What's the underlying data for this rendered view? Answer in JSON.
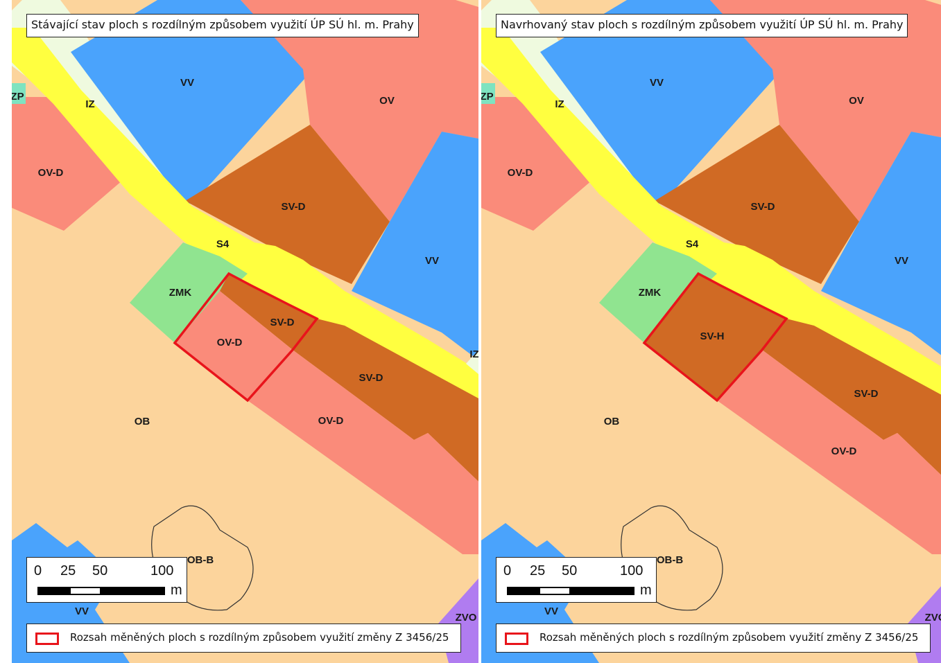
{
  "left_panel": {
    "title": "Stávající stav ploch s rozdílným způsobem využití ÚP SÚ hl. m. Prahy",
    "labels": {
      "vv_top": "VV",
      "iz": "IZ",
      "zp": "ZP",
      "ov": "OV",
      "ov_d_left": "OV-D",
      "sv_d_upper": "SV-D",
      "s4": "S4",
      "vv_right": "VV",
      "zmk": "ZMK",
      "sv_d_small": "SV-D",
      "ov_d_center": "OV-D",
      "sv_d_lower": "SV-D",
      "iz_edge": "IZ",
      "ob": "OB",
      "ov_d_lower": "OV-D",
      "ob_b": "OB-B",
      "vv_bottom": "VV",
      "zvo": "ZVO"
    },
    "scale": {
      "t0": "0",
      "t25": "25",
      "t50": "50",
      "t100": "100",
      "unit": "m"
    },
    "legend": {
      "text": "Rozsah měněných ploch s rozdílným způsobem využití změny Z 3456/25"
    }
  },
  "right_panel": {
    "title": "Navrhovaný stav ploch s rozdílným způsobem využití ÚP SÚ hl. m. Prahy",
    "labels": {
      "vv_top": "VV",
      "iz": "IZ",
      "zp": "ZP",
      "ov": "OV",
      "ov_d_left": "OV-D",
      "sv_d_upper": "SV-D",
      "s4": "S4",
      "vv_right": "VV",
      "zmk": "ZMK",
      "sv_h": "SV-H",
      "sv_d_lower": "SV-D",
      "ob": "OB",
      "ov_d_lower": "OV-D",
      "ob_b": "OB-B",
      "vv_bottom": "VV",
      "zvo": "ZVO"
    },
    "scale": {
      "t0": "0",
      "t25": "25",
      "t50": "50",
      "t100": "100",
      "unit": "m"
    },
    "legend": {
      "text": "Rozsah měněných ploch s rozdílným způsobem využití změny Z 3456/25"
    }
  },
  "colors": {
    "ob": "#fcd49c",
    "ov": "#fa8b7a",
    "sv": "#d06a24",
    "vv": "#4aa3fc",
    "road": "#ffff40",
    "iz": "#effadf",
    "zmk": "#90e490",
    "zvo": "#b07cf0",
    "zp": "#7ee3c0",
    "outline": "#e8141b"
  }
}
